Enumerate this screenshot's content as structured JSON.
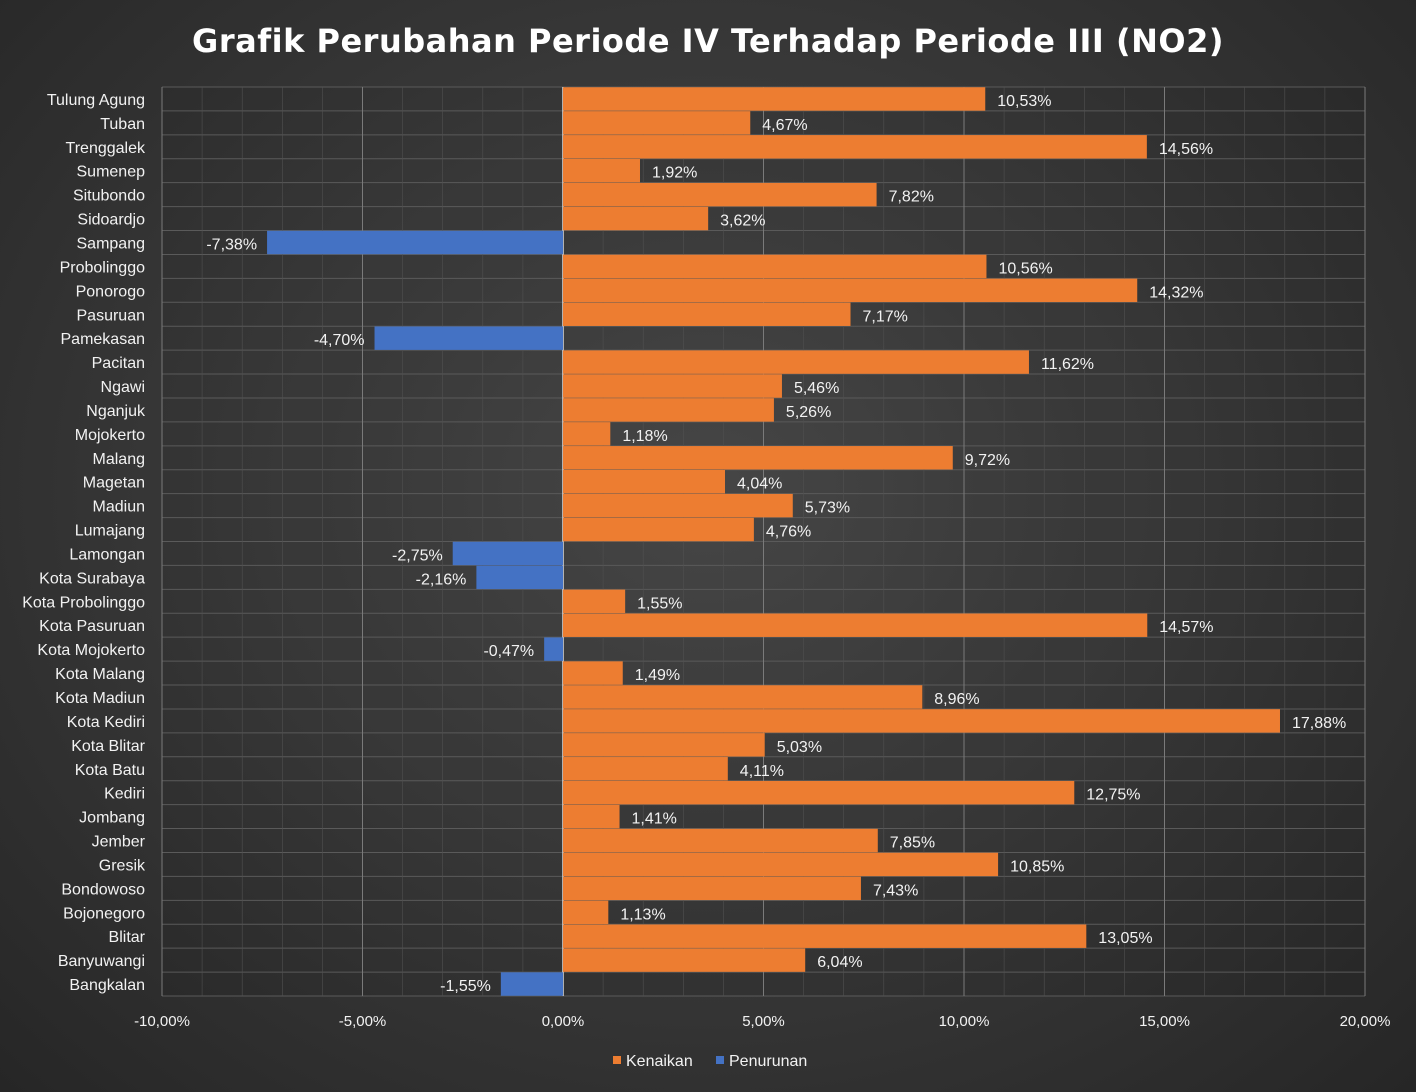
{
  "chart_data": {
    "type": "bar",
    "orientation": "horizontal",
    "title": "Grafik Perubahan Periode IV Terhadap Periode III (NO2)",
    "xlim": [
      -10,
      20
    ],
    "x_ticks": [
      -10,
      -5,
      0,
      5,
      10,
      15,
      20
    ],
    "x_tick_labels": [
      "-10,00%",
      "-5,00%",
      "0,00%",
      "5,00%",
      "10,00%",
      "15,00%",
      "20,00%"
    ],
    "grid": true,
    "legend_position": "bottom",
    "series": [
      {
        "name": "Kenaikan",
        "color": "#ed7d31"
      },
      {
        "name": "Penurunan",
        "color": "#4472c4"
      }
    ],
    "categories": [
      "Tulung Agung",
      "Tuban",
      "Trenggalek",
      "Sumenep",
      "Situbondo",
      "Sidoardjo",
      "Sampang",
      "Probolinggo",
      "Ponorogo",
      "Pasuruan",
      "Pamekasan",
      "Pacitan",
      "Ngawi",
      "Nganjuk",
      "Mojokerto",
      "Malang",
      "Magetan",
      "Madiun",
      "Lumajang",
      "Lamongan",
      "Kota Surabaya",
      "Kota Probolinggo",
      "Kota Pasuruan",
      "Kota Mojokerto",
      "Kota Malang",
      "Kota Madiun",
      "Kota Kediri",
      "Kota Blitar",
      "Kota Batu",
      "Kediri",
      "Jombang",
      "Jember",
      "Gresik",
      "Bondowoso",
      "Bojonegoro",
      "Blitar",
      "Banyuwangi",
      "Bangkalan"
    ],
    "values": [
      10.53,
      4.67,
      14.56,
      1.92,
      7.82,
      3.62,
      -7.38,
      10.56,
      14.32,
      7.17,
      -4.7,
      11.62,
      5.46,
      5.26,
      1.18,
      9.72,
      4.04,
      5.73,
      4.76,
      -2.75,
      -2.16,
      1.55,
      14.57,
      -0.47,
      1.49,
      8.96,
      17.88,
      5.03,
      4.11,
      12.75,
      1.41,
      7.85,
      10.85,
      7.43,
      1.13,
      13.05,
      6.04,
      -1.55
    ],
    "data_labels": [
      "10,53%",
      "4,67%",
      "14,56%",
      "1,92%",
      "7,82%",
      "3,62%",
      "-7,38%",
      "10,56%",
      "14,32%",
      "7,17%",
      "-4,70%",
      "11,62%",
      "5,46%",
      "5,26%",
      "1,18%",
      "9,72%",
      "4,04%",
      "5,73%",
      "4,76%",
      "-2,75%",
      "-2,16%",
      "1,55%",
      "14,57%",
      "-0,47%",
      "1,49%",
      "8,96%",
      "17,88%",
      "5,03%",
      "4,11%",
      "12,75%",
      "1,41%",
      "7,85%",
      "10,85%",
      "7,43%",
      "1,13%",
      "13,05%",
      "6,04%",
      "-1,55%"
    ]
  }
}
